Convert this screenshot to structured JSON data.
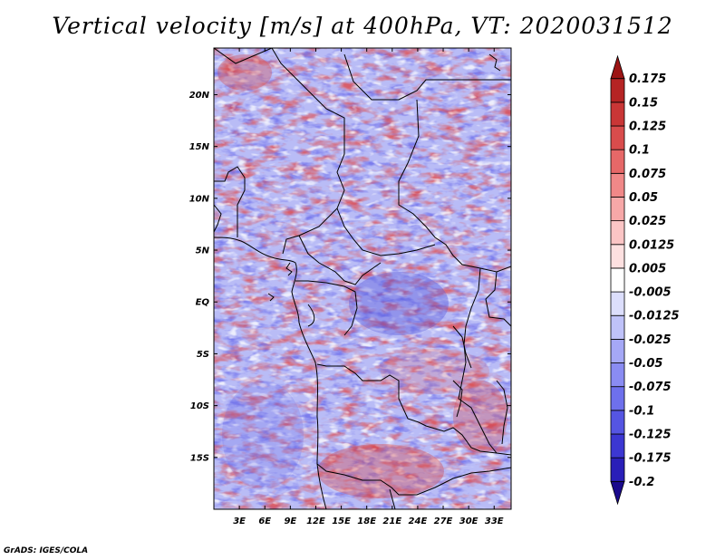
{
  "title": "Vertical velocity [m/s] at 400hPa, VT: 2020031512",
  "credit": "GrADS: IGES/COLA",
  "map": {
    "lon_range": [
      0,
      35
    ],
    "lat_range": [
      -20,
      24.5
    ],
    "lat_ticks": [
      {
        "value": 20,
        "label": "20N"
      },
      {
        "value": 15,
        "label": "15N"
      },
      {
        "value": 10,
        "label": "10N"
      },
      {
        "value": 5,
        "label": "5N"
      },
      {
        "value": 0,
        "label": "EQ"
      },
      {
        "value": -5,
        "label": "5S"
      },
      {
        "value": -10,
        "label": "10S"
      },
      {
        "value": -15,
        "label": "15S"
      }
    ],
    "lon_ticks": [
      {
        "value": 3,
        "label": "3E"
      },
      {
        "value": 6,
        "label": "6E"
      },
      {
        "value": 9,
        "label": "9E"
      },
      {
        "value": 12,
        "label": "12E"
      },
      {
        "value": 15,
        "label": "15E"
      },
      {
        "value": 18,
        "label": "18E"
      },
      {
        "value": 21,
        "label": "21E"
      },
      {
        "value": 24,
        "label": "24E"
      },
      {
        "value": 27,
        "label": "27E"
      },
      {
        "value": 30,
        "label": "30E"
      },
      {
        "value": 33,
        "label": "33E"
      }
    ]
  },
  "colorbar": {
    "colors": [
      "#1a0a8c",
      "#2a1fb8",
      "#3c37d2",
      "#5555e2",
      "#6e70ec",
      "#8a8cf2",
      "#a5a8f6",
      "#bfc2f9",
      "#dcdefc",
      "#ffffff",
      "#fde0e0",
      "#fbc5c5",
      "#f7a8a8",
      "#f08888",
      "#e66868",
      "#d94c4c",
      "#c93636",
      "#b52424",
      "#9c1414"
    ],
    "labels": [
      "-0.2",
      "-0.175",
      "-0.125",
      "-0.1",
      "-0.075",
      "-0.05",
      "-0.025",
      "-0.0125",
      "-0.005",
      "0.005",
      "0.0125",
      "0.025",
      "0.05",
      "0.075",
      "0.1",
      "0.125",
      "0.15",
      "0.175"
    ]
  }
}
